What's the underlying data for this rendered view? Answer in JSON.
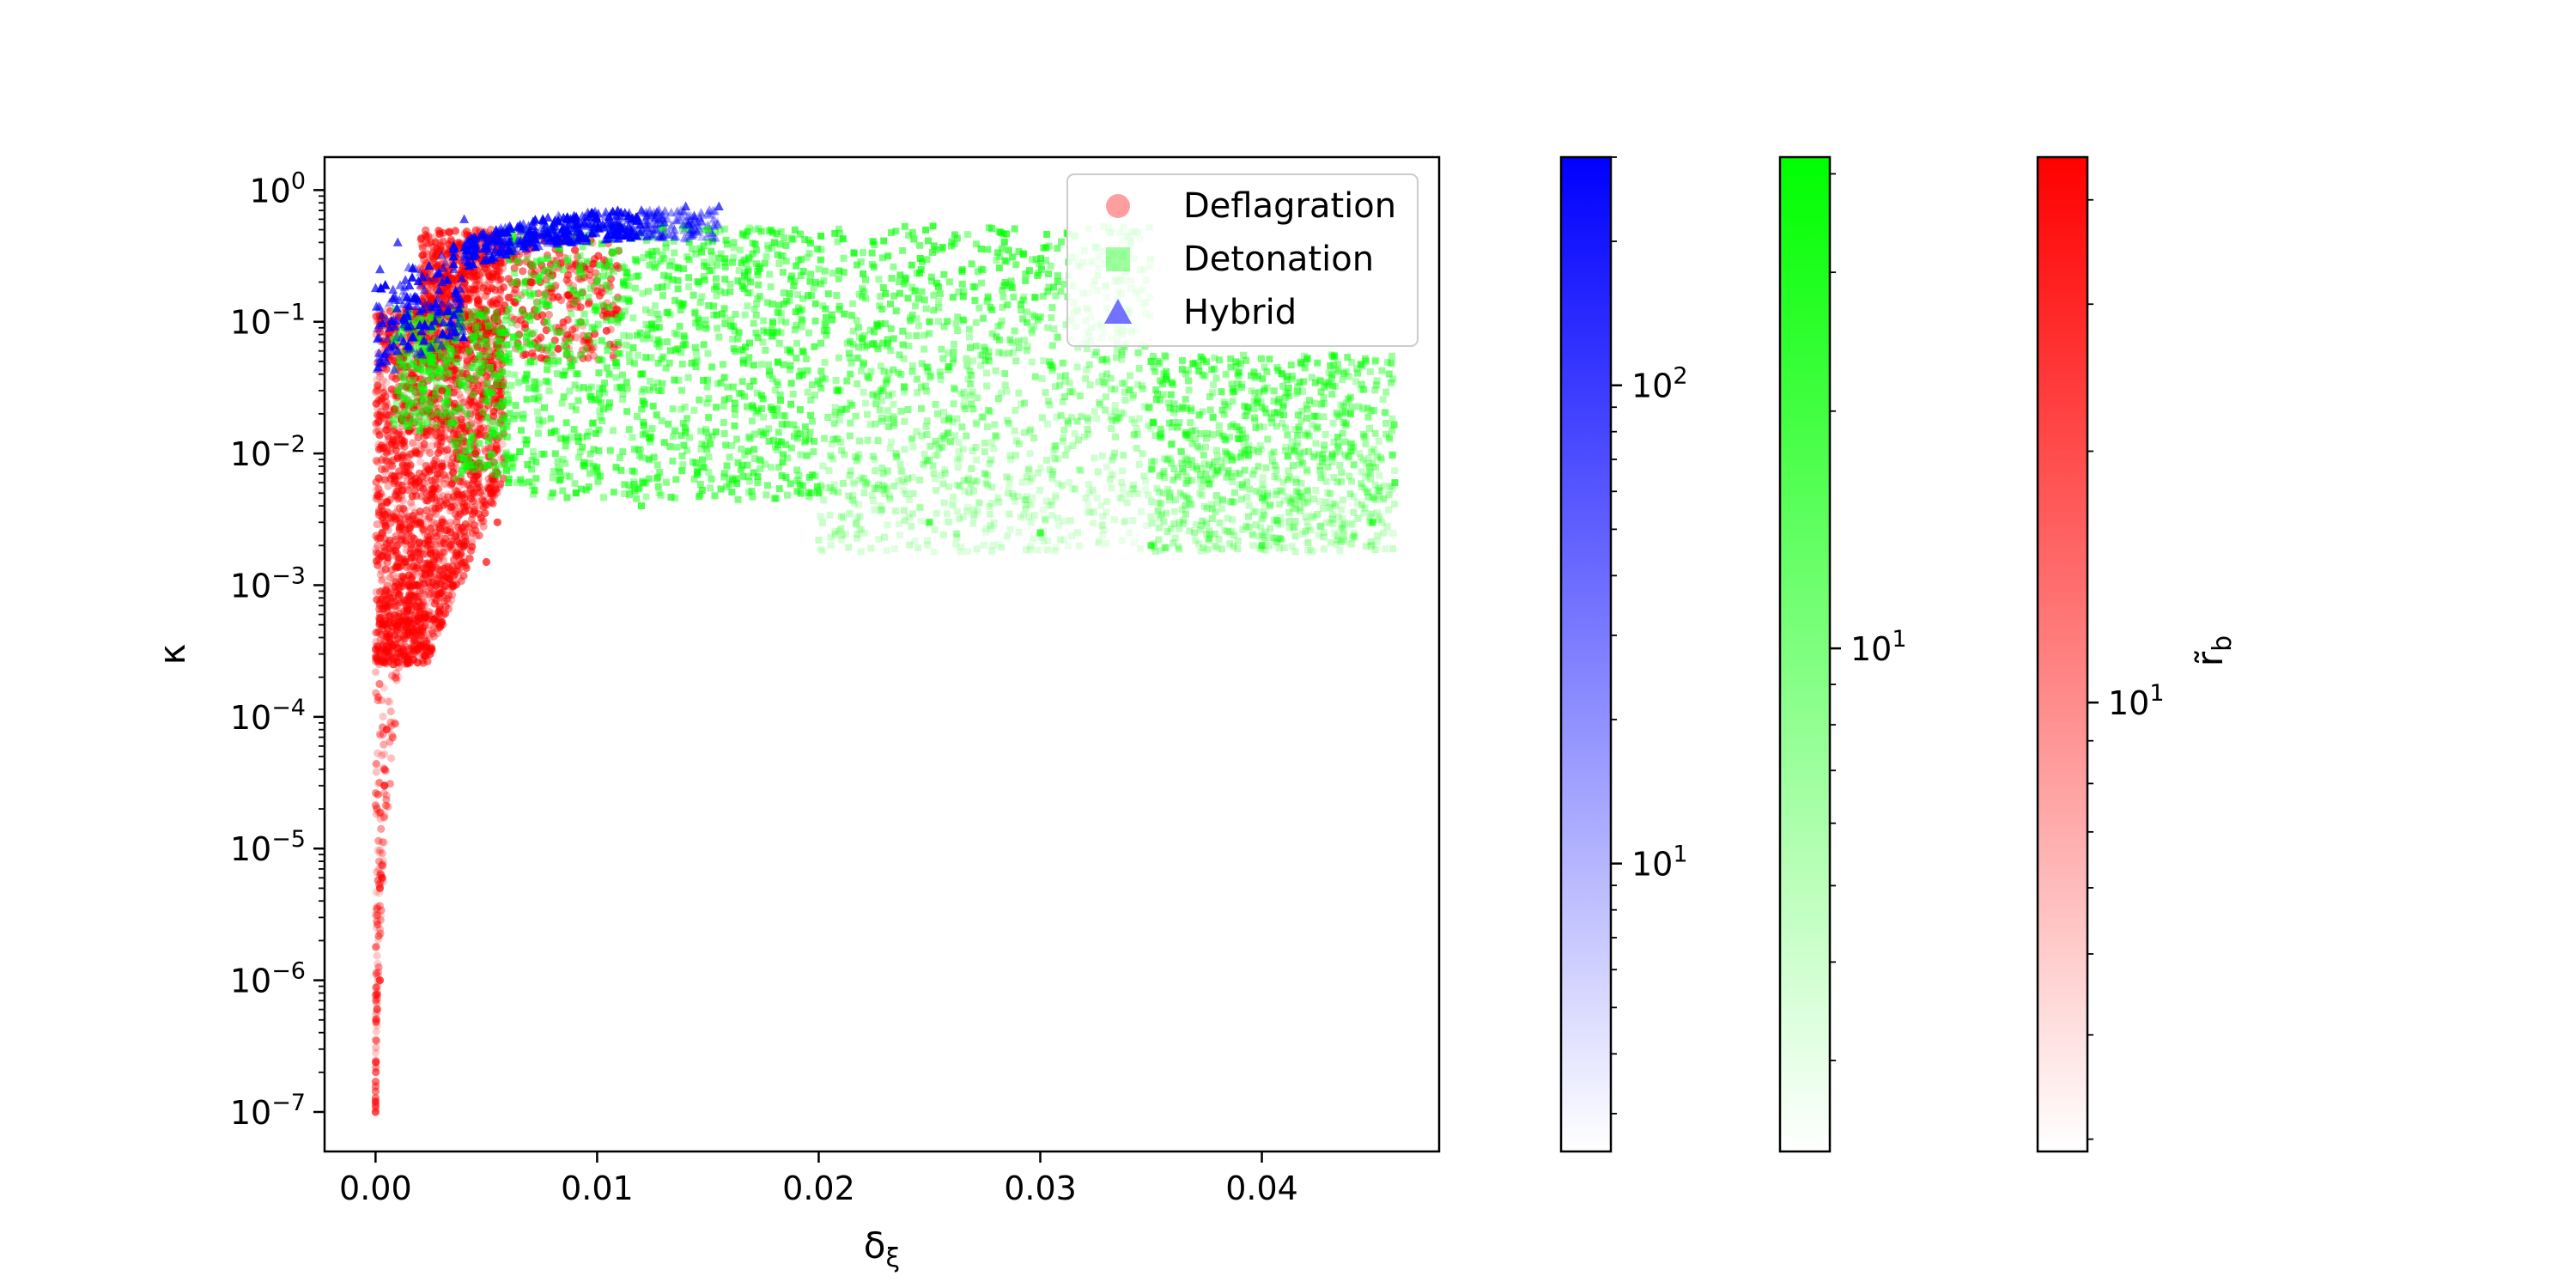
{
  "chart_data": {
    "type": "scatter",
    "title": "",
    "xlabel": "δ_ξ",
    "ylabel": "κ",
    "xlim": [
      -0.0023,
      0.048
    ],
    "x_ticks": [
      0.0,
      0.01,
      0.02,
      0.03,
      0.04
    ],
    "x_tick_labels": [
      "0.00",
      "0.01",
      "0.02",
      "0.03",
      "0.04"
    ],
    "yscale": "log",
    "ylim_exponent": [
      -7.3,
      0.25
    ],
    "y_tick_exponents": [
      0,
      -1,
      -2,
      -3,
      -4,
      -5,
      -6,
      -7
    ],
    "y_tick_labels": [
      {
        "base": "10",
        "exp": "0"
      },
      {
        "base": "10",
        "exp": "−1"
      },
      {
        "base": "10",
        "exp": "−2"
      },
      {
        "base": "10",
        "exp": "−3"
      },
      {
        "base": "10",
        "exp": "−4"
      },
      {
        "base": "10",
        "exp": "−5"
      },
      {
        "base": "10",
        "exp": "−6"
      },
      {
        "base": "10",
        "exp": "−7"
      }
    ],
    "grid": false,
    "legend_position": "top-right",
    "series": [
      {
        "name": "Deflagration",
        "marker": "circle",
        "color": "#ff0000",
        "region": {
          "x": [
            0.0,
            0.0058
          ],
          "kappa_exponent": [
            -7.0,
            -0.3
          ]
        },
        "points": [
          [
            0.0,
            1e-07
          ],
          [
            0.0,
            1.2e-07
          ],
          [
            0.0002,
            1e-06
          ],
          [
            0.0002,
            5e-06
          ],
          [
            0.0003,
            6e-06
          ],
          [
            0.0004,
            3e-05
          ],
          [
            0.0005,
            8e-05
          ],
          [
            0.0008,
            0.00025
          ],
          [
            0.001,
            0.0005
          ],
          [
            0.0015,
            0.001
          ],
          [
            0.002,
            0.003
          ],
          [
            0.003,
            0.008
          ],
          [
            0.004,
            0.002
          ],
          [
            0.005,
            0.0015
          ],
          [
            0.0055,
            0.003
          ],
          [
            0.0045,
            0.01
          ],
          [
            0.003,
            0.03
          ],
          [
            0.005,
            0.08
          ],
          [
            0.007,
            0.2
          ],
          [
            0.009,
            0.35
          ]
        ]
      },
      {
        "name": "Detonation",
        "marker": "square",
        "color": "#00ff00",
        "region": {
          "x": [
            0.0008,
            0.046
          ],
          "kappa_exponent": [
            -2.8,
            -0.25
          ]
        },
        "points": [
          [
            0.001,
            0.03
          ],
          [
            0.002,
            0.015
          ],
          [
            0.004,
            0.008
          ],
          [
            0.006,
            0.006
          ],
          [
            0.008,
            0.005
          ],
          [
            0.012,
            0.004
          ],
          [
            0.02,
            0.005
          ],
          [
            0.025,
            0.003
          ],
          [
            0.03,
            0.0025
          ],
          [
            0.035,
            0.002
          ],
          [
            0.04,
            0.002
          ],
          [
            0.045,
            0.003
          ],
          [
            0.046,
            0.006
          ],
          [
            0.044,
            0.02
          ],
          [
            0.035,
            0.05
          ],
          [
            0.025,
            0.1
          ],
          [
            0.018,
            0.4
          ],
          [
            0.015,
            0.5
          ],
          [
            0.01,
            0.2
          ],
          [
            0.007,
            0.05
          ]
        ]
      },
      {
        "name": "Hybrid",
        "marker": "triangle",
        "color": "#0000ff",
        "region": {
          "x": [
            0.0,
            0.0155
          ],
          "kappa_exponent": [
            -1.4,
            -0.15
          ]
        },
        "points": [
          [
            0.0,
            0.18
          ],
          [
            0.0002,
            0.25
          ],
          [
            0.0005,
            0.05
          ],
          [
            0.001,
            0.06
          ],
          [
            0.001,
            0.4
          ],
          [
            0.002,
            0.12
          ],
          [
            0.003,
            0.2
          ],
          [
            0.004,
            0.6
          ],
          [
            0.005,
            0.3
          ],
          [
            0.006,
            0.4
          ],
          [
            0.008,
            0.5
          ],
          [
            0.01,
            0.6
          ],
          [
            0.012,
            0.7
          ],
          [
            0.014,
            0.75
          ],
          [
            0.0155,
            0.75
          ]
        ]
      }
    ],
    "colorbars": [
      {
        "name": "Hybrid",
        "color_low": "#ffffff",
        "color_high": "#0000ff",
        "scale": "log",
        "range": [
          2.5,
          300
        ],
        "major_ticks": [
          {
            "value": 10,
            "base": "10",
            "exp": "1"
          },
          {
            "value": 100,
            "base": "10",
            "exp": "2"
          }
        ],
        "minor_ticks": [
          3,
          4,
          5,
          6,
          7,
          8,
          9,
          20,
          30,
          40,
          50,
          60,
          70,
          80,
          90,
          200,
          300
        ]
      },
      {
        "name": "Detonation",
        "color_low": "#ffffff",
        "color_high": "#00ff00",
        "scale": "log",
        "range": [
          2.3,
          42
        ],
        "major_ticks": [
          {
            "value": 10,
            "base": "10",
            "exp": "1"
          }
        ],
        "minor_ticks": [
          3,
          4,
          5,
          6,
          7,
          8,
          9,
          20,
          30,
          40
        ]
      },
      {
        "name": "Deflagration",
        "color_low": "#ffffff",
        "color_high": "#ff0000",
        "scale": "log",
        "range": [
          2.9,
          45
        ],
        "major_ticks": [
          {
            "value": 10,
            "base": "10",
            "exp": "1"
          }
        ],
        "minor_ticks": [
          3,
          4,
          5,
          6,
          7,
          8,
          9,
          20,
          30,
          40
        ],
        "label": "r̃_b"
      }
    ]
  }
}
